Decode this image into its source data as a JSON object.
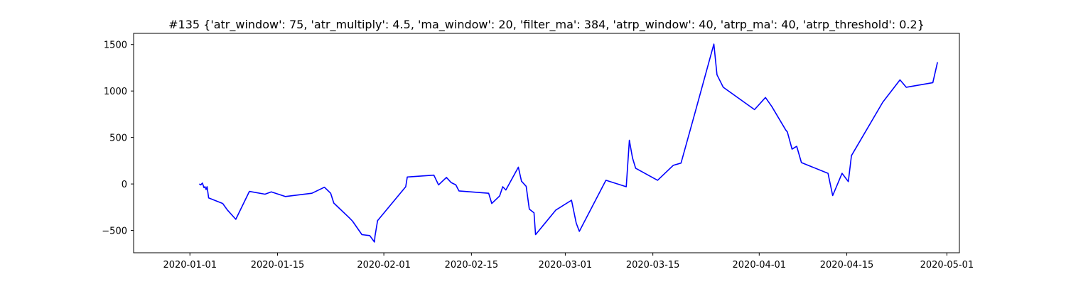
{
  "chart_data": {
    "type": "line",
    "title": "#135 {'atr_window': 75, 'atr_multiply': 4.5, 'ma_window': 20, 'filter_ma': 384, 'atrp_window': 40, 'atrp_ma': 40, 'atrp_threshold': 0.2}",
    "xlabel": "",
    "ylabel": "",
    "x_axis_type": "date",
    "xlim": [
      "2019-12-23",
      "2020-05-03"
    ],
    "ylim": [
      -740,
      1620
    ],
    "x_ticks": [
      "2020-01-01",
      "2020-01-15",
      "2020-02-01",
      "2020-02-15",
      "2020-03-01",
      "2020-03-15",
      "2020-04-01",
      "2020-04-15",
      "2020-05-01"
    ],
    "y_ticks": [
      -500,
      0,
      500,
      1000,
      1500
    ],
    "grid": false,
    "legend": false,
    "line_color": "#0000ff",
    "series": [
      {
        "points": [
          [
            "2020-01-02 12:00",
            0
          ],
          [
            "2020-01-02 18:00",
            -10
          ],
          [
            "2020-01-03 00:00",
            10
          ],
          [
            "2020-01-03 06:00",
            -40
          ],
          [
            "2020-01-03 10:00",
            -30
          ],
          [
            "2020-01-03 14:00",
            -60
          ],
          [
            "2020-01-03 18:00",
            -30
          ],
          [
            "2020-01-04 00:00",
            -150
          ],
          [
            "2020-01-06 06:00",
            -210
          ],
          [
            "2020-01-07 00:00",
            -280
          ],
          [
            "2020-01-08 08:00",
            -380
          ],
          [
            "2020-01-10 12:00",
            -80
          ],
          [
            "2020-01-13 00:00",
            -110
          ],
          [
            "2020-01-14 00:00",
            -85
          ],
          [
            "2020-01-16 06:00",
            -135
          ],
          [
            "2020-01-20 12:00",
            -100
          ],
          [
            "2020-01-22 12:00",
            -35
          ],
          [
            "2020-01-23 12:00",
            -100
          ],
          [
            "2020-01-24 00:00",
            -205
          ],
          [
            "2020-01-26 12:00",
            -365
          ],
          [
            "2020-01-27 00:00",
            -400
          ],
          [
            "2020-01-28 12:00",
            -545
          ],
          [
            "2020-01-29 18:00",
            -555
          ],
          [
            "2020-01-30 12:00",
            -625
          ],
          [
            "2020-01-30 14:00",
            -560
          ],
          [
            "2020-01-31 00:00",
            -395
          ],
          [
            "2020-02-04 12:00",
            -30
          ],
          [
            "2020-02-04 18:00",
            75
          ],
          [
            "2020-02-09 00:00",
            95
          ],
          [
            "2020-02-09 18:00",
            -10
          ],
          [
            "2020-02-11 00:00",
            70
          ],
          [
            "2020-02-11 18:00",
            15
          ],
          [
            "2020-02-12 12:00",
            -10
          ],
          [
            "2020-02-13 00:00",
            -75
          ],
          [
            "2020-02-17 18:00",
            -100
          ],
          [
            "2020-02-18 06:00",
            -210
          ],
          [
            "2020-02-19 12:00",
            -130
          ],
          [
            "2020-02-20 00:00",
            -30
          ],
          [
            "2020-02-20 12:00",
            -65
          ],
          [
            "2020-02-22 12:00",
            180
          ],
          [
            "2020-02-23 00:00",
            30
          ],
          [
            "2020-02-23 18:00",
            -25
          ],
          [
            "2020-02-24 06:00",
            -270
          ],
          [
            "2020-02-25 00:00",
            -310
          ],
          [
            "2020-02-25 06:00",
            -545
          ],
          [
            "2020-02-28 12:00",
            -280
          ],
          [
            "2020-03-02 00:00",
            -175
          ],
          [
            "2020-03-02 18:00",
            -420
          ],
          [
            "2020-03-03 06:00",
            -510
          ],
          [
            "2020-03-07 12:00",
            40
          ],
          [
            "2020-03-10 18:00",
            -30
          ],
          [
            "2020-03-11 06:00",
            470
          ],
          [
            "2020-03-11 18:00",
            280
          ],
          [
            "2020-03-12 06:00",
            170
          ],
          [
            "2020-03-15 18:00",
            40
          ],
          [
            "2020-03-18 06:00",
            200
          ],
          [
            "2020-03-19 12:00",
            225
          ],
          [
            "2020-03-21 18:00",
            770
          ],
          [
            "2020-03-24 18:00",
            1505
          ],
          [
            "2020-03-25 06:00",
            1175
          ],
          [
            "2020-03-26 06:00",
            1040
          ],
          [
            "2020-03-30 00:00",
            860
          ],
          [
            "2020-03-31 06:00",
            800
          ],
          [
            "2020-04-02 00:00",
            930
          ],
          [
            "2020-04-03 00:00",
            835
          ],
          [
            "2020-04-05 06:00",
            580
          ],
          [
            "2020-04-05 12:00",
            560
          ],
          [
            "2020-04-06 06:00",
            375
          ],
          [
            "2020-04-07 00:00",
            405
          ],
          [
            "2020-04-07 18:00",
            230
          ],
          [
            "2020-04-12 00:00",
            115
          ],
          [
            "2020-04-12 18:00",
            -125
          ],
          [
            "2020-04-14 06:00",
            115
          ],
          [
            "2020-04-15 06:00",
            25
          ],
          [
            "2020-04-15 18:00",
            305
          ],
          [
            "2020-04-20 18:00",
            880
          ],
          [
            "2020-04-23 12:00",
            1120
          ],
          [
            "2020-04-24 12:00",
            1040
          ],
          [
            "2020-04-28 18:00",
            1090
          ],
          [
            "2020-04-29 12:00",
            1310
          ]
        ]
      }
    ]
  }
}
